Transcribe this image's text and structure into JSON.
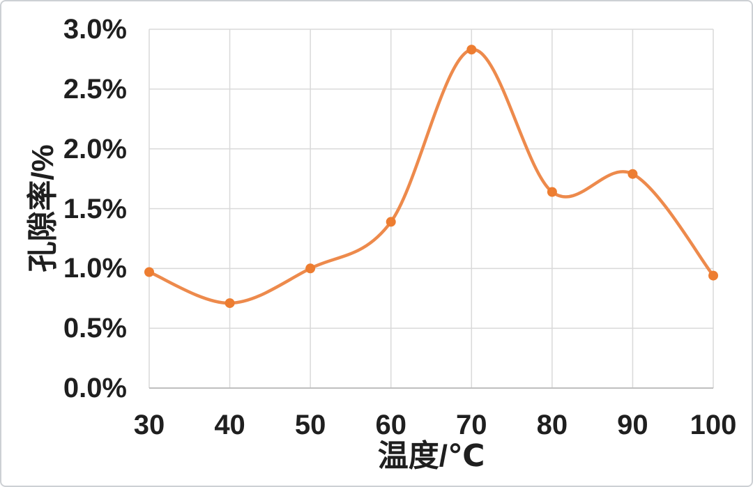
{
  "window": {
    "background_color": "#ffffff",
    "border_color": "#cdd0d4"
  },
  "chart_data": {
    "type": "line",
    "title": "",
    "xlabel": "温度/℃",
    "ylabel": "孔隙率/%",
    "x": [
      30,
      40,
      50,
      60,
      70,
      80,
      90,
      100
    ],
    "series": [
      {
        "name": "孔隙率",
        "values": [
          0.97,
          0.71,
          1.0,
          1.39,
          2.83,
          1.64,
          1.79,
          0.94
        ]
      }
    ],
    "xlim": [
      30,
      100
    ],
    "ylim": [
      0,
      3
    ],
    "xticks": [
      30,
      40,
      50,
      60,
      70,
      80,
      90,
      100
    ],
    "xtick_labels": [
      "30",
      "40",
      "50",
      "60",
      "70",
      "80",
      "90",
      "100"
    ],
    "yticks": [
      0,
      0.5,
      1,
      1.5,
      2,
      2.5,
      3
    ],
    "ytick_labels": [
      "0.0%",
      "0.5%",
      "1.0%",
      "1.5%",
      "2.0%",
      "2.5%",
      "3.0%"
    ],
    "grid": true,
    "legend_position": "none",
    "smooth_line": true,
    "marker_shape": "circle",
    "line_color": "#ED8A4C",
    "marker_color": "#ED7D31",
    "gridline_color": "#D9D9D9",
    "axis_line_color": "#BFBFBF",
    "text_color": "#1f1f1f"
  }
}
